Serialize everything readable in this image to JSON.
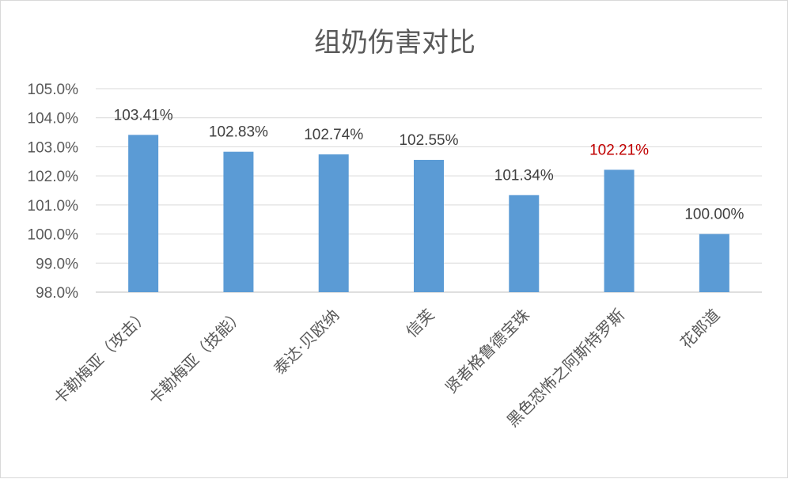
{
  "chart_data": {
    "type": "bar",
    "title": "组奶伤害对比",
    "xlabel": "",
    "ylabel": "",
    "categories": [
      "卡勒梅亚（攻击）",
      "卡勒梅亚（技能）",
      "泰达·贝欧纳",
      "信芙",
      "贤者格鲁德宝珠",
      "黑色恐怖之阿斯特罗斯",
      "花郎道"
    ],
    "values": [
      103.41,
      102.83,
      102.74,
      102.55,
      101.34,
      102.21,
      100.0
    ],
    "data_labels": [
      "103.41%",
      "102.83%",
      "102.74%",
      "102.55%",
      "101.34%",
      "102.21%",
      "100.00%"
    ],
    "ylim": [
      98.0,
      105.0
    ],
    "yticks": [
      98.0,
      99.0,
      100.0,
      101.0,
      102.0,
      103.0,
      104.0,
      105.0
    ],
    "ytick_labels": [
      "98.0%",
      "99.0%",
      "100.0%",
      "101.0%",
      "102.0%",
      "103.0%",
      "104.0%",
      "105.0%"
    ],
    "grid": true,
    "legend": "none",
    "colors": {
      "bar": "#5b9bd5",
      "label_default": "#404040",
      "label_highlight": "#c00000"
    },
    "highlighted_label_indices": [
      5
    ]
  }
}
